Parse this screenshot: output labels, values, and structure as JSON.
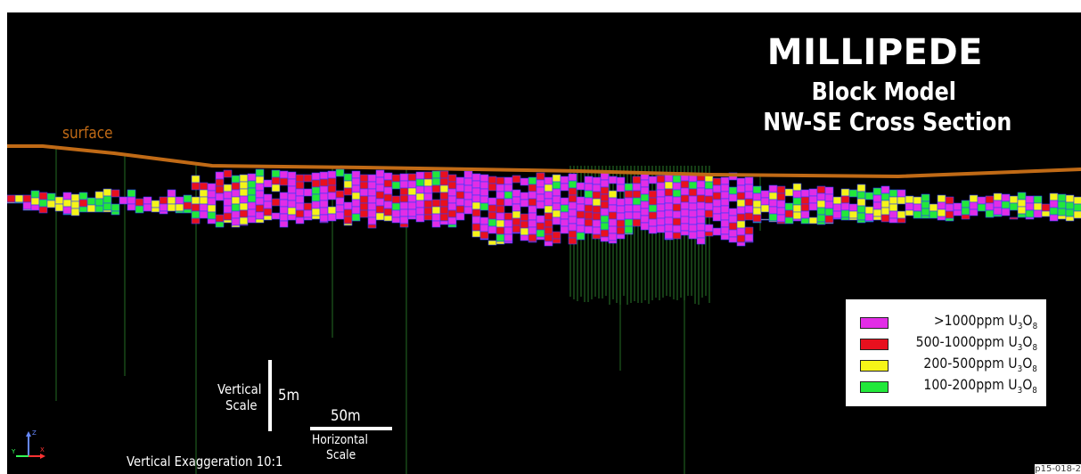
{
  "title": {
    "main": "MILLIPEDE",
    "line2": "Block Model",
    "line3": "NW-SE Cross Section"
  },
  "surface_label": "surface",
  "legend": {
    "entries": [
      {
        "range": ">1000ppm",
        "element": "U",
        "sub1": "3",
        "mid": "O",
        "sub2": "8",
        "color": "#e22de6"
      },
      {
        "range": "500-1000ppm",
        "element": "U",
        "sub1": "3",
        "mid": "O",
        "sub2": "8",
        "color": "#e8101e"
      },
      {
        "range": "200-500ppm",
        "element": "U",
        "sub1": "3",
        "mid": "O",
        "sub2": "8",
        "color": "#f6f418"
      },
      {
        "range": "100-200ppm",
        "element": "U",
        "sub1": "3",
        "mid": "O",
        "sub2": "8",
        "color": "#22e83a"
      }
    ]
  },
  "scales": {
    "vertical_label_1": "Vertical",
    "vertical_label_2": "Scale",
    "vertical_value": "5m",
    "horizontal_value": "50m",
    "horizontal_label_1": "Horizontal",
    "horizontal_label_2": "Scale",
    "exaggeration": "Vertical Exaggeration 10:1"
  },
  "axis_labels": {
    "z": "Z",
    "y": "Y",
    "x": "X"
  },
  "reference_code": "p15-018-2",
  "colors": {
    "background": "#000000",
    "surface_line": "#c06a16",
    "drillhole": "#1f5a1f",
    "block_outline": "#2a3cff"
  }
}
